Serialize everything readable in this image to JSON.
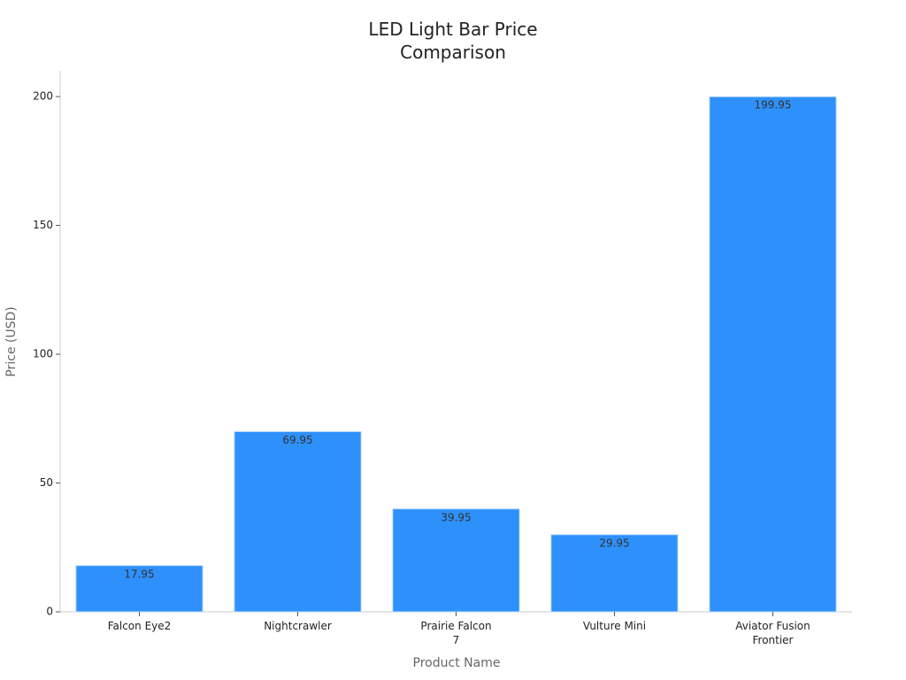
{
  "chart_data": {
    "type": "bar",
    "title": "LED Light Bar Price\nComparison",
    "x_label": "Product Name",
    "y_label": "Price (USD)",
    "categories": [
      "Falcon Eye2",
      "Nightcrawler",
      "Prairie Falcon\n7",
      "Vulture Mini",
      "Aviator Fusion\nFrontier"
    ],
    "values": [
      17.95,
      69.95,
      39.95,
      29.95,
      199.95
    ],
    "color": "#2e90fa",
    "ylim": [
      0,
      210
    ],
    "yticks": [
      0,
      50,
      100,
      150,
      200
    ],
    "grid": false
  }
}
